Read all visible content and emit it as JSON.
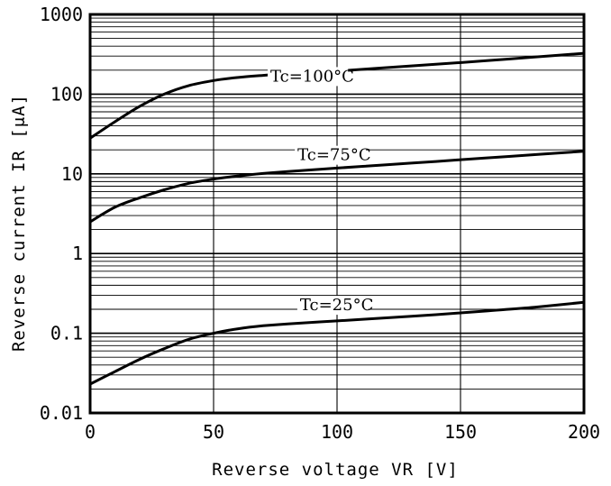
{
  "chart_data": {
    "type": "line",
    "title": "",
    "xlabel": "Reverse voltage VR [V]",
    "ylabel": "Reverse current IR [μA]",
    "xlim": [
      0,
      200
    ],
    "ylim": [
      0.01,
      1000
    ],
    "yscale": "log",
    "grid": true,
    "x_ticks": [
      0,
      50,
      100,
      150,
      200
    ],
    "x_tick_labels": [
      "0",
      "50",
      "100",
      "150",
      "200"
    ],
    "y_ticks": [
      0.01,
      0.1,
      1,
      10,
      100,
      1000
    ],
    "y_tick_labels": [
      "0.01",
      "0.1",
      "1",
      "10",
      "100",
      "1000"
    ],
    "series": [
      {
        "name": "Tc=100°C",
        "x": [
          0,
          10,
          20,
          30,
          40,
          50,
          60,
          70,
          80,
          100,
          120,
          140,
          160,
          180,
          200
        ],
        "y": [
          28,
          45,
          70,
          100,
          128,
          148,
          162,
          172,
          180,
          195,
          215,
          237,
          262,
          292,
          325
        ]
      },
      {
        "name": "Tc=75°C",
        "x": [
          0,
          10,
          20,
          30,
          40,
          50,
          60,
          70,
          80,
          100,
          120,
          140,
          160,
          180,
          200
        ],
        "y": [
          2.5,
          3.8,
          5.0,
          6.3,
          7.6,
          8.6,
          9.4,
          10.1,
          10.7,
          11.8,
          13.0,
          14.3,
          15.8,
          17.4,
          19.2
        ]
      },
      {
        "name": "Tc=25°C",
        "x": [
          0,
          10,
          20,
          30,
          40,
          50,
          60,
          70,
          80,
          100,
          120,
          140,
          160,
          180,
          200
        ],
        "y": [
          0.023,
          0.033,
          0.047,
          0.064,
          0.084,
          0.1,
          0.114,
          0.124,
          0.131,
          0.143,
          0.156,
          0.171,
          0.19,
          0.212,
          0.245
        ]
      }
    ]
  }
}
